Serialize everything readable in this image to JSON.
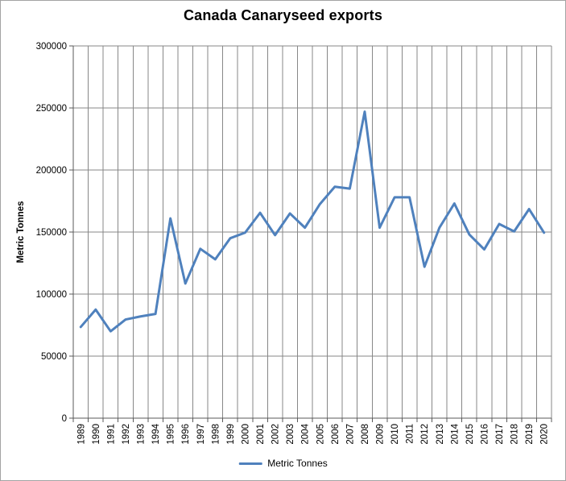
{
  "chart": {
    "title": "Canada Canaryseed exports",
    "y_axis_title": "Metric Tonnes",
    "legend": {
      "label": "Metric Tonnes"
    }
  },
  "chart_data": {
    "type": "line",
    "title": "Canada Canaryseed exports",
    "xlabel": "",
    "ylabel": "Metric Tonnes",
    "x": [
      "1989",
      "1990",
      "1991",
      "1992",
      "1993",
      "1994",
      "1995",
      "1996",
      "1997",
      "1998",
      "1999",
      "2000",
      "2001",
      "2002",
      "2003",
      "2004",
      "2005",
      "2006",
      "2007",
      "2008",
      "2009",
      "2010",
      "2011",
      "2012",
      "2013",
      "2014",
      "2015",
      "2016",
      "2017",
      "2018",
      "2019",
      "2020"
    ],
    "series": [
      {
        "name": "Metric Tonnes",
        "color": "#4F81BD",
        "values": [
          73500,
          87500,
          70000,
          79500,
          82000,
          84000,
          161000,
          108500,
          136500,
          128000,
          145000,
          149500,
          165500,
          147500,
          165000,
          153500,
          172500,
          186500,
          185000,
          247000,
          153500,
          178000,
          178000,
          122000,
          153500,
          173000,
          148000,
          136000,
          156500,
          150500,
          168500,
          149500
        ]
      }
    ],
    "ylim": [
      0,
      300000
    ],
    "ytick_step": 50000,
    "ytick_labels": [
      "0",
      "50000",
      "100000",
      "150000",
      "200000",
      "250000",
      "300000"
    ],
    "grid": "both",
    "grid_color": "#878787",
    "axis_color": "#595959",
    "tick_label_color": "#000000",
    "legend_position": "bottom",
    "background": "#FFFFFF",
    "border_color": "#A3A3A3"
  }
}
